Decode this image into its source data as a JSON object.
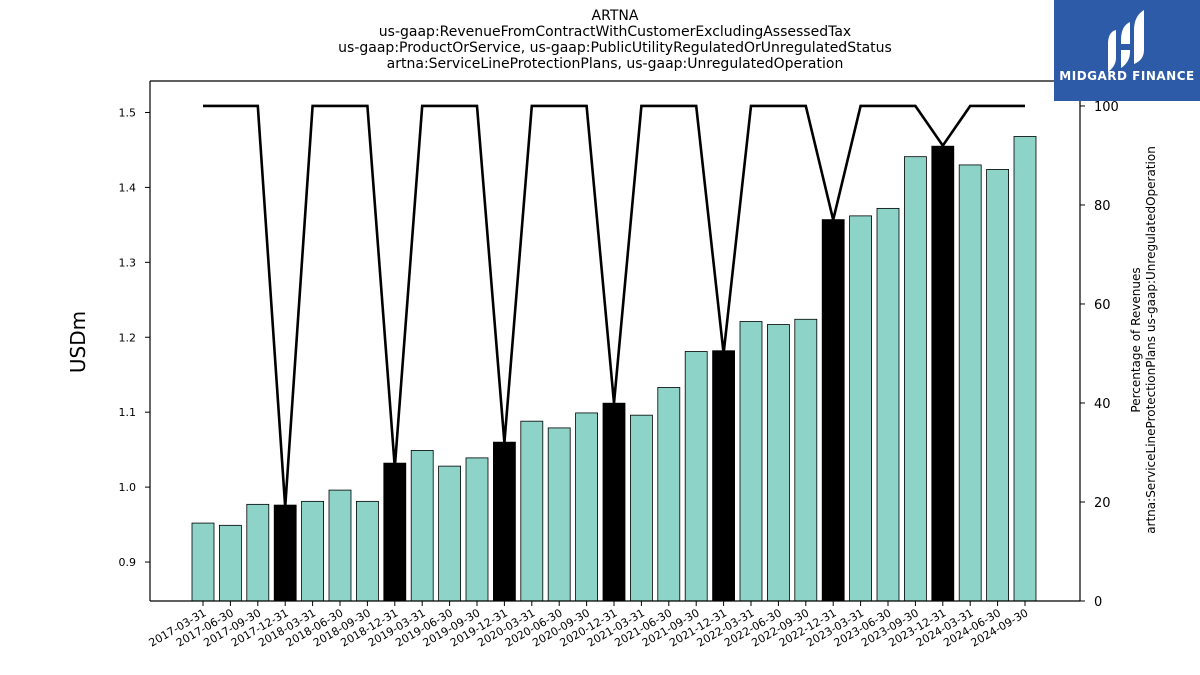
{
  "title_lines": [
    "ARTNA",
    "us-gaap:RevenueFromContractWithCustomerExcludingAssessedTax",
    "us-gaap:ProductOrService, us-gaap:PublicUtilityRegulatedOrUnregulatedStatus",
    "artna:ServiceLineProtectionPlans, us-gaap:UnregulatedOperation"
  ],
  "logo": {
    "text": "MIDGARD FINANCE",
    "background": "#2d5ba8"
  },
  "chart_data": {
    "type": "bar",
    "title": "ARTNA",
    "ylabel": "USDm",
    "y2label": "Percentage of Revenues\nartna:ServiceLineProtectionPlans us-gaap:UnregulatedOperation",
    "ylim": [
      0.848,
      1.542
    ],
    "y2lim": [
      0,
      100
    ],
    "yticks": [
      0.9,
      1.0,
      1.1,
      1.2,
      1.3,
      1.4,
      1.5
    ],
    "y2ticks": [
      0,
      20,
      40,
      60,
      80,
      100
    ],
    "grid": false,
    "colors": {
      "quarter": "#8dd3c7",
      "annual": "#000000",
      "line": "#000000"
    },
    "categories": [
      "2017-03-31",
      "2017-06-30",
      "2017-09-30",
      "2017-12-31",
      "2018-03-31",
      "2018-06-30",
      "2018-09-30",
      "2018-12-31",
      "2019-03-31",
      "2019-06-30",
      "2019-09-30",
      "2019-12-31",
      "2020-03-31",
      "2020-06-30",
      "2020-09-30",
      "2020-12-31",
      "2021-03-31",
      "2021-06-30",
      "2021-09-30",
      "2021-12-31",
      "2022-03-31",
      "2022-06-30",
      "2022-09-30",
      "2022-12-31",
      "2023-03-31",
      "2023-06-30",
      "2023-09-30",
      "2023-12-31",
      "2024-03-31",
      "2024-06-30",
      "2024-09-30"
    ],
    "series": [
      {
        "values": [
          0.952,
          0.949,
          0.977,
          0.976,
          0.981,
          0.996,
          0.981,
          1.032,
          1.049,
          1.028,
          1.039,
          1.06,
          1.088,
          1.079,
          1.099,
          1.112,
          1.096,
          1.133,
          1.181,
          1.182,
          1.221,
          1.217,
          1.224,
          1.357,
          1.362,
          1.372,
          1.441,
          1.455,
          1.43,
          1.424,
          1.468
        ]
      },
      {
        "type": "line",
        "axis": "right",
        "values": [
          100,
          100,
          100,
          19,
          100,
          100,
          100,
          27,
          100,
          100,
          100,
          32,
          100,
          100,
          100,
          40,
          100,
          100,
          100,
          50,
          100,
          100,
          100,
          77,
          100,
          100,
          100,
          92,
          100,
          100,
          100
        ]
      }
    ],
    "annual_flags": [
      false,
      false,
      false,
      true,
      false,
      false,
      false,
      true,
      false,
      false,
      false,
      true,
      false,
      false,
      false,
      true,
      false,
      false,
      false,
      true,
      false,
      false,
      false,
      true,
      false,
      false,
      false,
      true,
      false,
      false,
      false
    ]
  }
}
